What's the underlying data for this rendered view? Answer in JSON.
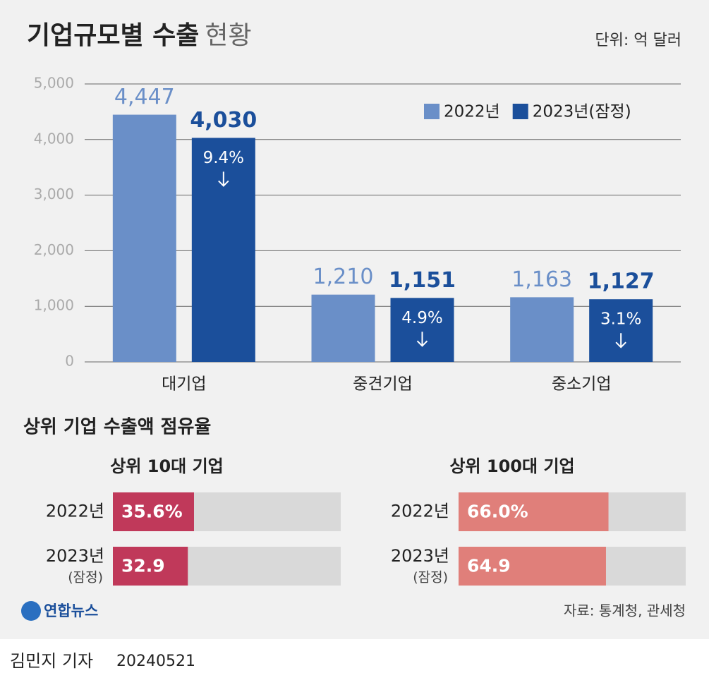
{
  "title": "기업규모별 수출",
  "title_suffix": "현황",
  "unit": "단위: 억 달러",
  "chart_data": [
    {
      "type": "bar",
      "orientation": "vertical",
      "categories": [
        "대기업",
        "중견기업",
        "중소기업"
      ],
      "series": [
        {
          "name": "2022년",
          "color": "#6a8fc8",
          "values": [
            4447,
            1210,
            1163
          ],
          "value_labels": [
            "4,447",
            "1,210",
            "1,163"
          ]
        },
        {
          "name": "2023년(잠정)",
          "color": "#1b4f9b",
          "values": [
            4030,
            1151,
            1127
          ],
          "value_labels": [
            "4,030",
            "1,151",
            "1,127"
          ],
          "change_labels": [
            "9.4%",
            "4.9%",
            "3.1%"
          ]
        }
      ],
      "ylim": [
        0,
        5000
      ],
      "yticks": [
        0,
        {
          "value": 1000,
          "label": "1,000"
        },
        {
          "value": 2000,
          "label": "2,000"
        },
        {
          "value": 3000,
          "label": "3,000"
        },
        {
          "value": 4000,
          "label": "4,000"
        },
        {
          "value": 5000,
          "label": "5,000"
        }
      ],
      "grid": true,
      "legend": "top-right"
    },
    {
      "type": "bar",
      "orientation": "horizontal",
      "title": "상위 10대 기업",
      "categories": [
        "2022년",
        "2023년"
      ],
      "category_notes": [
        null,
        "(잠정)"
      ],
      "values": [
        35.6,
        32.9
      ],
      "value_labels": [
        "35.6%",
        "32.9"
      ],
      "color": "#c0395a",
      "xlim": [
        0,
        100
      ]
    },
    {
      "type": "bar",
      "orientation": "horizontal",
      "title": "상위 100대 기업",
      "categories": [
        "2022년",
        "2023년"
      ],
      "category_notes": [
        null,
        "(잠정)"
      ],
      "values": [
        66.0,
        64.9
      ],
      "value_labels": [
        "66.0%",
        "64.9"
      ],
      "color": "#e07f7a",
      "xlim": [
        0,
        100
      ]
    }
  ],
  "section_title": "상위 기업 수출액 점유율",
  "logo": "연합뉴스",
  "source": "자료: 통계청, 관세청",
  "byline": "김민지 기자",
  "date": "20240521"
}
